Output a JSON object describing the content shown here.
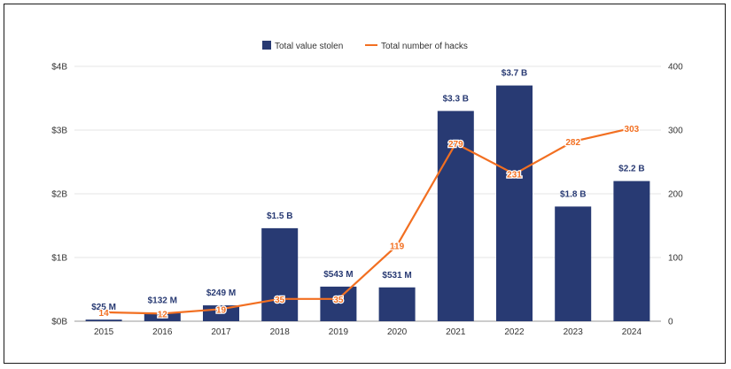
{
  "chart_data": {
    "type": "bar",
    "categories": [
      "2015",
      "2016",
      "2017",
      "2018",
      "2019",
      "2020",
      "2021",
      "2022",
      "2023",
      "2024"
    ],
    "series": [
      {
        "name": "Total value stolen",
        "type": "bar",
        "axis": "left",
        "color": "#283a73",
        "values": [
          0.025,
          0.132,
          0.249,
          1.46,
          0.543,
          0.531,
          3.3,
          3.7,
          1.8,
          2.2
        ],
        "labels": [
          "$25  M",
          "$132  M",
          "$249  M",
          "$1.5 B",
          "$543  M",
          "$531  M",
          "$3.3 B",
          "$3.7 B",
          "$1.8 B",
          "$2.2 B"
        ]
      },
      {
        "name": "Total number of hacks",
        "type": "line",
        "axis": "right",
        "color": "#f26f21",
        "values": [
          14,
          12,
          19,
          35,
          35,
          119,
          279,
          231,
          282,
          303
        ],
        "labels": [
          "14",
          "12",
          "19",
          "35",
          "35",
          "119",
          "279",
          "231",
          "282",
          "303"
        ]
      }
    ],
    "y_left": {
      "ylim": [
        0,
        4
      ],
      "ticks": [
        0,
        1,
        2,
        3,
        4
      ],
      "tick_labels": [
        "$0B",
        "$1B",
        "$2B",
        "$3B",
        "$4B"
      ]
    },
    "y_right": {
      "ylim": [
        0,
        400
      ],
      "ticks": [
        0,
        100,
        200,
        300,
        400
      ],
      "tick_labels": [
        "0",
        "100",
        "200",
        "300",
        "400"
      ]
    },
    "grid": true,
    "legend": {
      "position": "top-center"
    }
  }
}
